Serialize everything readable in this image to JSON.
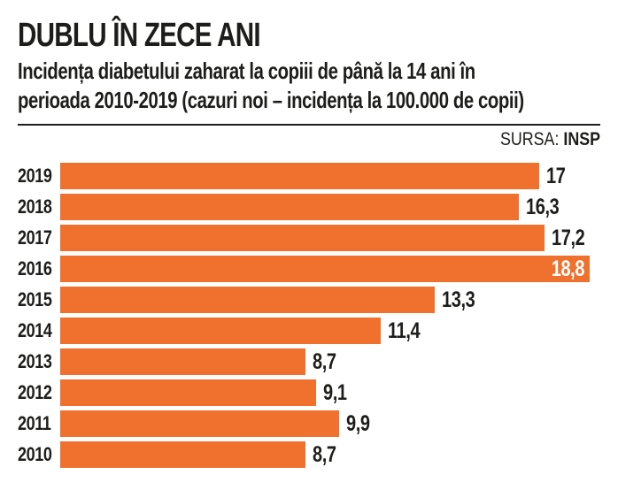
{
  "header": {
    "title": "DUBLU ÎN ZECE ANI",
    "subtitle_line1": "Incidența diabetului zaharat la copiii de până la 14 ani în",
    "subtitle_line2": "perioada 2010-2019 (cazuri noi – incidența la 100.000 de copii)",
    "source_label": "SURSA: ",
    "source_value": "INSP"
  },
  "colors": {
    "bar": "#f0712e",
    "text": "#1d1d1b",
    "value_inside": "#ffffff",
    "background": "#ffffff"
  },
  "chart_data": {
    "type": "bar",
    "orientation": "horizontal",
    "title": "DUBLU ÎN ZECE ANI",
    "subtitle": "Incidența diabetului zaharat la copiii de până la 14 ani în perioada 2010-2019 (cazuri noi – incidența la 100.000 de copii)",
    "source": "SURSA: INSP",
    "xlabel": "",
    "ylabel": "",
    "grid": false,
    "legend": false,
    "xlim": [
      0,
      19.5
    ],
    "categories": [
      "2019",
      "2018",
      "2017",
      "2016",
      "2015",
      "2014",
      "2013",
      "2012",
      "2011",
      "2010"
    ],
    "values": [
      17,
      16.3,
      17.2,
      18.8,
      13.3,
      11.4,
      8.7,
      9.1,
      9.9,
      8.7
    ],
    "value_labels": [
      "17",
      "16,3",
      "17,2",
      "18,8",
      "13,3",
      "11,4",
      "8,7",
      "9,1",
      "9,9",
      "8,7"
    ],
    "label_inside": [
      false,
      false,
      false,
      true,
      false,
      false,
      false,
      false,
      false,
      false
    ]
  }
}
